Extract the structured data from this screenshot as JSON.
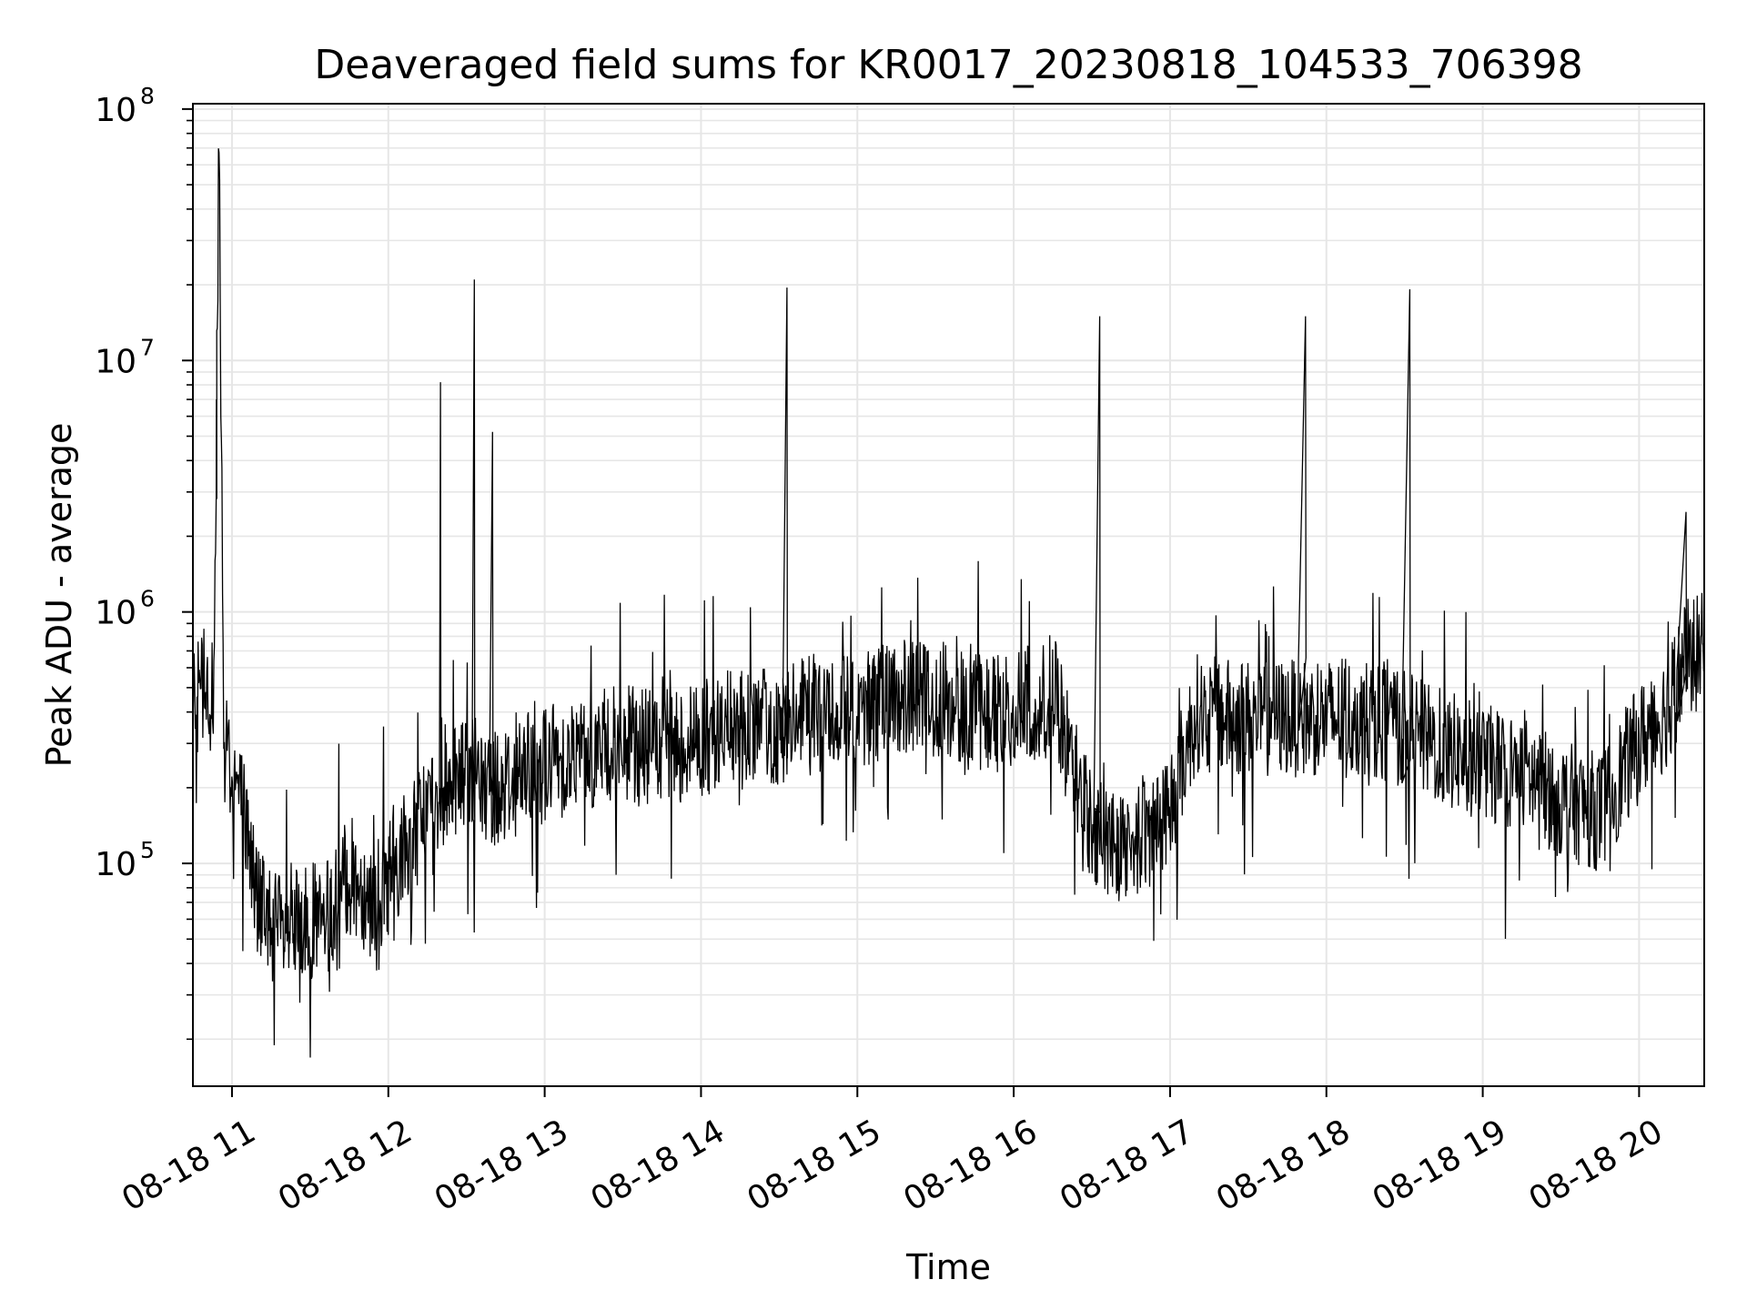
{
  "chart_data": {
    "type": "line",
    "title": "Deaveraged field sums for KR0017_20230818_104533_706398",
    "xlabel": "Time",
    "ylabel": "Peak ADU - average",
    "yscale": "log",
    "ylim": [
      13000,
      105000000
    ],
    "xlim": [
      "2023-08-18 10:45",
      "2023-08-18 20:25"
    ],
    "x_ticks": [
      "08-18 11",
      "08-18 12",
      "08-18 13",
      "08-18 14",
      "08-18 15",
      "08-18 16",
      "08-18 17",
      "08-18 18",
      "08-18 19",
      "08-18 20"
    ],
    "y_ticks": [
      {
        "value": 100000,
        "base": "10",
        "exp": "5"
      },
      {
        "value": 1000000,
        "base": "10",
        "exp": "6"
      },
      {
        "value": 10000000,
        "base": "10",
        "exp": "7"
      },
      {
        "value": 100000000,
        "base": "10",
        "exp": "8"
      }
    ],
    "grid": true,
    "line_color": "#000000",
    "grid_color": "#e6e6e6",
    "series": [
      {
        "x": [
          "2023-08-18 10:45",
          "2023-08-18 10:49",
          "2023-08-18 10:53",
          "2023-08-18 10:55",
          "2023-08-18 10:57",
          "2023-08-18 11:00",
          "2023-08-18 11:05",
          "2023-08-18 11:10",
          "2023-08-18 11:15",
          "2023-08-18 11:20",
          "2023-08-18 11:25",
          "2023-08-18 11:30",
          "2023-08-18 11:35",
          "2023-08-18 11:40",
          "2023-08-18 11:45",
          "2023-08-18 11:50",
          "2023-08-18 11:55",
          "2023-08-18 12:00",
          "2023-08-18 12:10",
          "2023-08-18 12:20",
          "2023-08-18 12:30",
          "2023-08-18 12:40",
          "2023-08-18 12:50",
          "2023-08-18 13:00",
          "2023-08-18 13:15",
          "2023-08-18 13:30",
          "2023-08-18 13:45",
          "2023-08-18 14:00",
          "2023-08-18 14:15",
          "2023-08-18 14:30",
          "2023-08-18 14:45",
          "2023-08-18 15:00",
          "2023-08-18 15:15",
          "2023-08-18 15:30",
          "2023-08-18 15:45",
          "2023-08-18 16:00",
          "2023-08-18 16:10",
          "2023-08-18 16:15",
          "2023-08-18 16:20",
          "2023-08-18 16:30",
          "2023-08-18 16:40",
          "2023-08-18 16:50",
          "2023-08-18 17:00",
          "2023-08-18 17:10",
          "2023-08-18 17:20",
          "2023-08-18 17:40",
          "2023-08-18 18:00",
          "2023-08-18 18:20",
          "2023-08-18 18:40",
          "2023-08-18 19:00",
          "2023-08-18 19:15",
          "2023-08-18 19:30",
          "2023-08-18 19:45",
          "2023-08-18 20:00",
          "2023-08-18 20:10",
          "2023-08-18 20:18",
          "2023-08-18 20:25"
        ],
        "y": [
          550000,
          500000,
          450000,
          70000000,
          300000,
          250000,
          150000,
          70000,
          60000,
          50000,
          55000,
          60000,
          55000,
          70000,
          90000,
          80000,
          70000,
          90000,
          130000,
          200000,
          230000,
          200000,
          220000,
          250000,
          280000,
          300000,
          280000,
          320000,
          350000,
          350000,
          400000,
          400000,
          450000,
          450000,
          400000,
          400000,
          450000,
          500000,
          300000,
          140000,
          120000,
          130000,
          170000,
          400000,
          380000,
          380000,
          380000,
          380000,
          300000,
          250000,
          230000,
          180000,
          160000,
          300000,
          400000,
          650000,
          700000
        ]
      }
    ],
    "spikes": [
      {
        "x": "2023-08-18 10:54",
        "y": 7000000
      },
      {
        "x": "2023-08-18 12:20",
        "y": 8200000
      },
      {
        "x": "2023-08-18 12:33",
        "y": 21000000
      },
      {
        "x": "2023-08-18 12:40",
        "y": 5200000
      },
      {
        "x": "2023-08-18 14:33",
        "y": 19500000
      },
      {
        "x": "2023-08-18 16:33",
        "y": 15000000
      },
      {
        "x": "2023-08-18 17:52",
        "y": 15000000
      },
      {
        "x": "2023-08-18 18:32",
        "y": 19200000
      },
      {
        "x": "2023-08-18 20:18",
        "y": 2500000
      }
    ]
  }
}
